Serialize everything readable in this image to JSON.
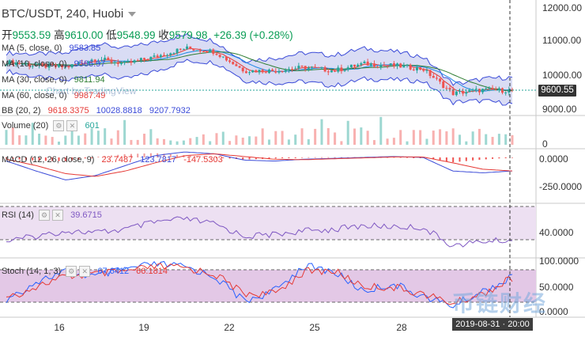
{
  "header": {
    "symbol": "BTC/USDT, 240, Huobi"
  },
  "ohlc": {
    "open_label": "开",
    "open": "9553.59",
    "high_label": "高",
    "high": "9610.00",
    "low_label": "低",
    "low": "9548.99",
    "close_label": "收",
    "close": "9579.98",
    "change": "+26.39 (+0.28%)"
  },
  "legends": {
    "ma5": {
      "label": "MA (5, close, 0)",
      "value": "9583.85"
    },
    "ma10": {
      "label": "MA (10, close, 0)",
      "value": "9566.97"
    },
    "ma30": {
      "label": "MA (30, close, 0)",
      "value": "9811.94"
    },
    "ma60": {
      "label": "MA (60, close, 0)",
      "value": "9987.49"
    },
    "bb": {
      "label": "BB (20, 2)",
      "v1": "9618.3375",
      "v2": "10028.8818",
      "v3": "9207.7932"
    },
    "volume": {
      "label": "Volume (20)",
      "value": "601"
    },
    "macd": {
      "label": "MACD (12, 26, close, 9)",
      "v1": "23.7487",
      "v2": "123.7817",
      "v3": "-147.5303"
    },
    "rsi": {
      "label": "RSI (14)",
      "value": "39.6715"
    },
    "stoch": {
      "label": "Stoch (14, 1, 3)",
      "v1": "67.6412",
      "v2": "66.1814"
    }
  },
  "price_axis": [
    "12000.00",
    "11000.00",
    "10000.00",
    "9000.00"
  ],
  "current_price_tag": "9600.55",
  "volume_axis": [
    "0"
  ],
  "macd_axis": [
    "0.0000",
    "-250.0000"
  ],
  "rsi_axis": [
    "40.0000"
  ],
  "stoch_axis": [
    "100.0000",
    "50.0000",
    "0.0000"
  ],
  "x_labels": [
    "16",
    "19",
    "22",
    "25",
    "28"
  ],
  "crosshair_date": "2019-08-31 · 20:00",
  "watermark": "币链财经",
  "tv_watermark": "Chart by TradingView",
  "colors": {
    "up": "#26a69a",
    "down": "#ef5350",
    "bb_fill": "#c9cdf0",
    "bb_line": "#3b4bd8",
    "ma_red": "#e53935",
    "ma_green": "#2e7d32",
    "rsi": "#7e57c2",
    "stoch_k": "#2962ff",
    "stoch_d": "#e53935"
  },
  "chart_data": [
    {
      "type": "candlestick",
      "title": "BTC/USDT, 240, Huobi",
      "ylim": [
        9000,
        12000
      ],
      "x": [
        "14",
        "15",
        "16",
        "17",
        "18",
        "19",
        "20",
        "21",
        "22",
        "23",
        "24",
        "25",
        "26",
        "27",
        "28",
        "29",
        "30",
        "31"
      ],
      "approx_close": [
        10400,
        10300,
        10250,
        10500,
        10350,
        10550,
        10800,
        10700,
        10150,
        10150,
        10250,
        10150,
        10350,
        10300,
        10200,
        9500,
        9600,
        9580
      ]
    },
    {
      "type": "bar",
      "title": "Volume (20)",
      "note_value": 601
    },
    {
      "type": "line",
      "title": "MACD (12, 26, close, 9)",
      "ylim": [
        -350,
        80
      ],
      "series": [
        {
          "name": "MACD",
          "values": [
            -40,
            -150,
            -250,
            -200,
            -90,
            20,
            60,
            40,
            -30,
            -40,
            -20,
            -10,
            0,
            10,
            0,
            -150,
            -170,
            -150
          ]
        },
        {
          "name": "Signal",
          "values": [
            -20,
            -90,
            -180,
            -210,
            -150,
            -60,
            20,
            40,
            10,
            -20,
            -25,
            -15,
            -5,
            5,
            5,
            -60,
            -130,
            -150
          ]
        }
      ]
    },
    {
      "type": "line",
      "title": "RSI (14)",
      "ylim": [
        20,
        80
      ],
      "series": [
        {
          "name": "RSI",
          "values": [
            38,
            44,
            50,
            48,
            52,
            60,
            64,
            58,
            44,
            46,
            50,
            52,
            56,
            55,
            54,
            33,
            38,
            39.67
          ]
        }
      ]
    },
    {
      "type": "line",
      "title": "Stoch (14, 1, 3)",
      "ylim": [
        0,
        100
      ],
      "series": [
        {
          "name": "%K",
          "values": [
            20,
            60,
            80,
            70,
            85,
            95,
            90,
            70,
            20,
            40,
            92,
            80,
            40,
            55,
            30,
            10,
            40,
            67.64
          ]
        },
        {
          "name": "%D",
          "values": [
            25,
            50,
            70,
            75,
            80,
            90,
            88,
            75,
            35,
            35,
            80,
            82,
            50,
            48,
            35,
            15,
            35,
            66.18
          ]
        }
      ]
    }
  ]
}
